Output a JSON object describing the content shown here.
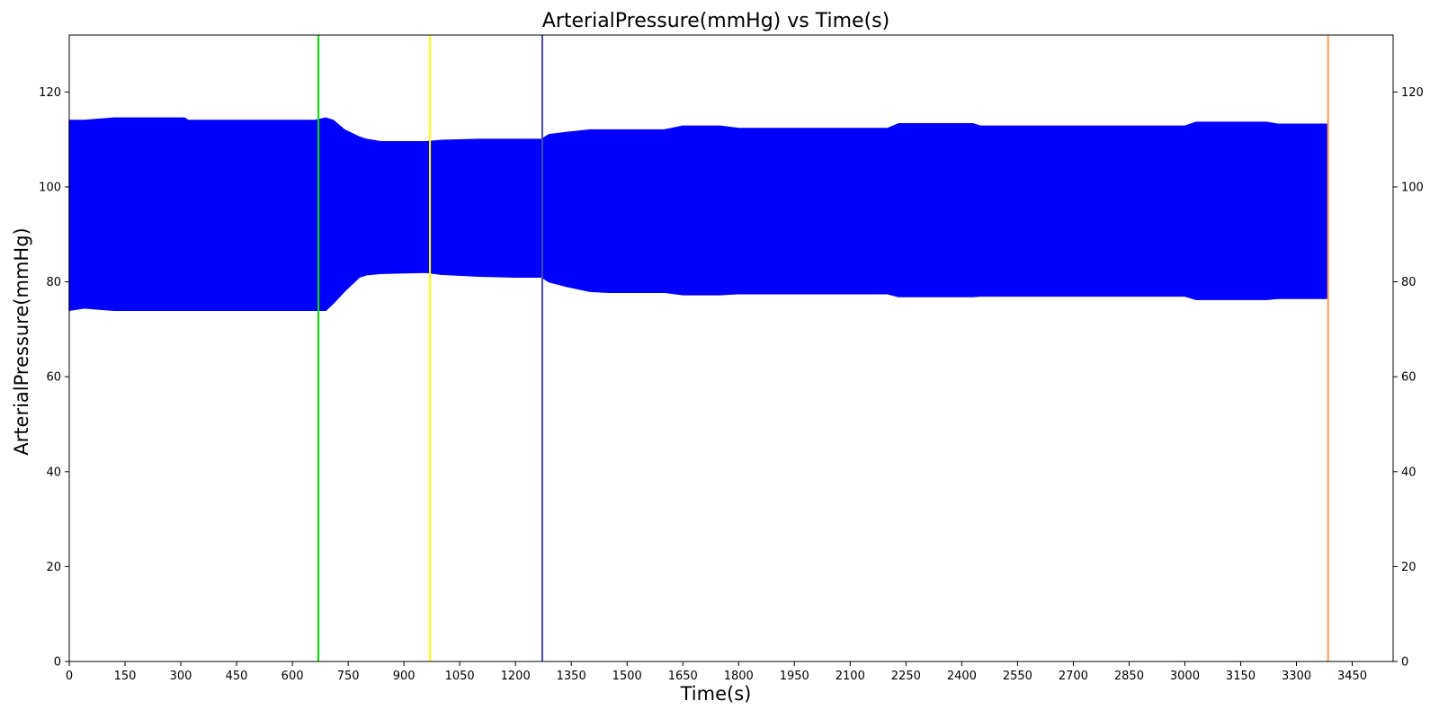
{
  "chart_data": {
    "type": "area",
    "title": "ArterialPressure(mmHg) vs Time(s)",
    "xlabel": "Time(s)",
    "ylabel": "ArterialPressure(mmHg)",
    "xlim": [
      0,
      3560
    ],
    "ylim": [
      0,
      132
    ],
    "x_ticks": [
      0,
      150,
      300,
      450,
      600,
      750,
      900,
      1050,
      1200,
      1350,
      1500,
      1650,
      1800,
      1950,
      2100,
      2250,
      2400,
      2550,
      2700,
      2850,
      3000,
      3150,
      3300,
      3450
    ],
    "y_ticks": [
      0,
      20,
      40,
      60,
      80,
      100,
      120
    ],
    "right_axis_ticks": true,
    "grid": false,
    "legend": "none",
    "series": [
      {
        "color": "#0000ff",
        "fill": "band between systolic (upper) and diastolic (lower) pressure envelopes",
        "upper": {
          "x": [
            0,
            40,
            120,
            310,
            320,
            600,
            660,
            690,
            710,
            740,
            780,
            800,
            840,
            960,
            1000,
            1100,
            1200,
            1270,
            1290,
            1340,
            1400,
            1450,
            1600,
            1650,
            1750,
            1800,
            2200,
            2230,
            2430,
            2450,
            3000,
            3030,
            3220,
            3250,
            3385
          ],
          "y": [
            114,
            114,
            114.5,
            114.5,
            114,
            114,
            114,
            114.5,
            114,
            112,
            110.5,
            110,
            109.5,
            109.5,
            109.8,
            110,
            110,
            110,
            111,
            111.5,
            112,
            112,
            112,
            112.8,
            112.8,
            112.3,
            112.3,
            113.3,
            113.3,
            112.8,
            112.8,
            113.6,
            113.6,
            113.2,
            113.2
          ]
        },
        "lower": {
          "x": [
            0,
            40,
            120,
            310,
            320,
            600,
            660,
            690,
            710,
            740,
            780,
            800,
            840,
            960,
            1000,
            1100,
            1200,
            1270,
            1290,
            1340,
            1400,
            1450,
            1600,
            1650,
            1750,
            1800,
            2200,
            2230,
            2430,
            2450,
            3000,
            3030,
            3220,
            3250,
            3385
          ],
          "y": [
            74,
            74.5,
            74,
            74,
            74,
            74,
            74,
            74,
            75.5,
            78,
            81,
            81.5,
            81.8,
            82,
            81.6,
            81.2,
            81,
            81,
            80,
            79,
            78,
            77.8,
            77.8,
            77.3,
            77.3,
            77.5,
            77.5,
            76.9,
            76.9,
            77,
            77,
            76.3,
            76.3,
            76.5,
            76.5
          ]
        }
      }
    ],
    "vertical_lines": [
      {
        "x": 670,
        "color": "#00e000"
      },
      {
        "x": 970,
        "color": "#ffff00"
      },
      {
        "x": 1272,
        "color": "#4a4ab0"
      },
      {
        "x": 3385,
        "color": "#ff9a4d"
      }
    ]
  }
}
